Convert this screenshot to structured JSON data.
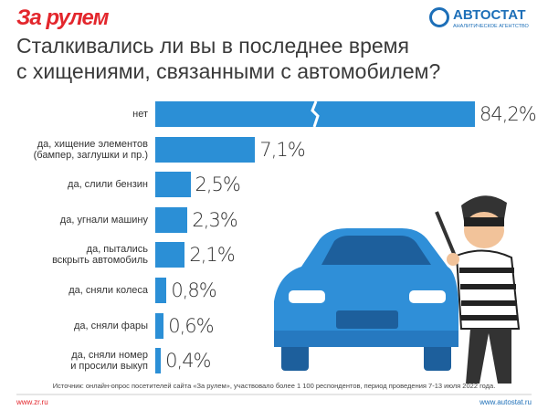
{
  "header": {
    "brand": "За рулем",
    "agency": "АВТОСТАТ",
    "agency_subtitle": "АНАЛИТИЧЕСКОЕ АГЕНТСТВО"
  },
  "chart_data": {
    "type": "bar",
    "orientation": "horizontal",
    "title": "Сталкивались ли вы в последнее время\nс хищениями, связанными с автомобилем?",
    "categories": [
      "нет",
      "да, хищение элементов\n(бампер, заглушки и пр.)",
      "да, слили бензин",
      "да, угнали машину",
      "да, пытались\nвскрыть автомобиль",
      "да, сняли колеса",
      "да, сняли фары",
      "да, сняли номер\nи просили выкуп"
    ],
    "values": [
      84.2,
      7.1,
      2.5,
      2.3,
      2.1,
      0.8,
      0.6,
      0.4
    ],
    "value_labels": [
      "84,2%",
      "7,1%",
      "2,5%",
      "2,3%",
      "2,1%",
      "0,8%",
      "0,6%",
      "0,4%"
    ],
    "color": "#2b8fd6",
    "bar_break": true
  },
  "footer": {
    "source": "Источник: онлайн-опрос посетителей сайта «За рулем», участвовало более 1 100 респондентов, период проведения 7-13 июля 2022 года.",
    "left_url": "www.zr.ru",
    "right_url": "www.autostat.ru"
  }
}
